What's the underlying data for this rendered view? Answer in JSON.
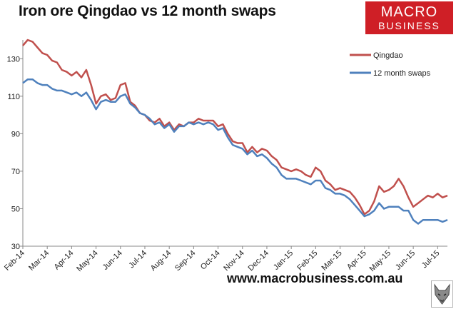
{
  "header": {
    "title": "Iron ore Qingdao vs 12 month swaps"
  },
  "brand": {
    "line1": "MACRO",
    "line2": "BUSINESS",
    "color": "#cf1f26"
  },
  "footer": {
    "url": "www.macrobusiness.com.au",
    "logo_icon": "wolf-head-icon"
  },
  "chart_data": {
    "type": "line",
    "title": "Iron ore Qingdao vs 12 month swaps",
    "xlabel": "",
    "ylabel": "",
    "ylim": [
      30,
      145
    ],
    "yticks": [
      30,
      50,
      70,
      90,
      110,
      130
    ],
    "grid": false,
    "legend_position": "top-right",
    "x_tick_labels": [
      "Feb-14",
      "Mar-14",
      "Apr-14",
      "May-14",
      "Jun-14",
      "Jul-14",
      "Aug-14",
      "Sep-14",
      "Oct-14",
      "Nov-14",
      "Dec-14",
      "Jan-15",
      "Feb-15",
      "Mar-15",
      "Apr-15",
      "May-15",
      "Jun-15",
      "Jul-15"
    ],
    "x": [
      0,
      0.2,
      0.4,
      0.6,
      0.8,
      1.0,
      1.2,
      1.4,
      1.6,
      1.8,
      2.0,
      2.2,
      2.4,
      2.6,
      2.8,
      3.0,
      3.2,
      3.4,
      3.6,
      3.8,
      4.0,
      4.2,
      4.4,
      4.6,
      4.8,
      5.0,
      5.2,
      5.4,
      5.6,
      5.8,
      6.0,
      6.2,
      6.4,
      6.6,
      6.8,
      7.0,
      7.2,
      7.4,
      7.6,
      7.8,
      8.0,
      8.2,
      8.4,
      8.6,
      8.8,
      9.0,
      9.2,
      9.4,
      9.6,
      9.8,
      10.0,
      10.2,
      10.4,
      10.6,
      10.8,
      11.0,
      11.2,
      11.4,
      11.6,
      11.8,
      12.0,
      12.2,
      12.4,
      12.6,
      12.8,
      13.0,
      13.2,
      13.4,
      13.6,
      13.8,
      14.0,
      14.2,
      14.4,
      14.6,
      14.8,
      15.0,
      15.2,
      15.4,
      15.6,
      15.8,
      16.0,
      16.2,
      16.4,
      16.6,
      16.8,
      17.0,
      17.2,
      17.4
    ],
    "series": [
      {
        "name": "Qingdao",
        "color": "#c0504d",
        "values": [
          137,
          140,
          139,
          136,
          133,
          132,
          129,
          128,
          124,
          123,
          121,
          123,
          120,
          124,
          116,
          106,
          110,
          111,
          108,
          109,
          116,
          117,
          107,
          105,
          101,
          100,
          97,
          96,
          98,
          94,
          96,
          92,
          95,
          94,
          96,
          96,
          98,
          97,
          97,
          97,
          94,
          95,
          90,
          86,
          85,
          85,
          80,
          83,
          80,
          82,
          81,
          78,
          76,
          72,
          71,
          70,
          71,
          70,
          68,
          67,
          72,
          70,
          65,
          63,
          60,
          61,
          60,
          59,
          56,
          52,
          47,
          49,
          54,
          62,
          59,
          60,
          62,
          66,
          62,
          56,
          51,
          53,
          55,
          57,
          56,
          58,
          56,
          57
        ]
      },
      {
        "name": "12 month swaps",
        "color": "#4f81bd",
        "values": [
          117,
          119,
          119,
          117,
          116,
          116,
          114,
          113,
          113,
          112,
          111,
          112,
          110,
          112,
          108,
          103,
          107,
          108,
          107,
          107,
          110,
          111,
          106,
          104,
          101,
          100,
          98,
          95,
          96,
          93,
          95,
          91,
          94,
          94,
          96,
          95,
          96,
          95,
          96,
          95,
          92,
          93,
          88,
          84,
          83,
          82,
          79,
          81,
          78,
          79,
          77,
          74,
          72,
          68,
          66,
          66,
          66,
          65,
          64,
          63,
          65,
          65,
          61,
          60,
          58,
          58,
          57,
          55,
          52,
          49,
          46,
          47,
          49,
          53,
          50,
          51,
          51,
          51,
          49,
          49,
          44,
          42,
          44,
          44,
          44,
          44,
          43,
          44
        ]
      }
    ]
  }
}
